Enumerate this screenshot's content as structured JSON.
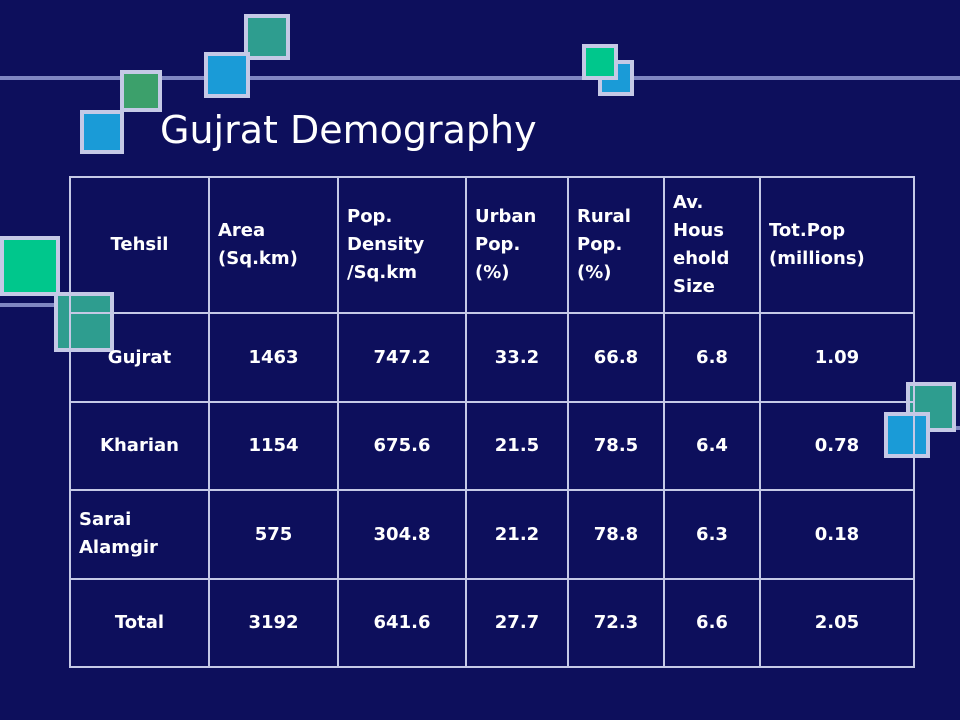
{
  "slide": {
    "title": "Gujrat Demography",
    "accent_colors": [
      "#00c78c",
      "#1a9bd7",
      "#2e9d8f",
      "#3ca06b"
    ]
  },
  "table": {
    "headers": [
      [
        "Tehsil"
      ],
      [
        "Area",
        "(Sq.km)"
      ],
      [
        "Pop.",
        "Density",
        "/Sq.km"
      ],
      [
        "Urban",
        "Pop.",
        "(%)"
      ],
      [
        "Rural",
        "Pop.",
        "(%)"
      ],
      [
        "Av.",
        "Hous",
        "ehold",
        "Size"
      ],
      [
        "Tot.Pop",
        "(millions)"
      ]
    ],
    "rows": [
      {
        "tehsil": [
          "Gujrat"
        ],
        "area": "1463",
        "density": "747.2",
        "urban": "33.2",
        "rural": "66.8",
        "household": "6.8",
        "total_pop": "1.09"
      },
      {
        "tehsil": [
          "Kharian"
        ],
        "area": "1154",
        "density": "675.6",
        "urban": "21.5",
        "rural": "78.5",
        "household": "6.4",
        "total_pop": "0.78"
      },
      {
        "tehsil": [
          "Sarai",
          "Alamgir"
        ],
        "area": "575",
        "density": "304.8",
        "urban": "21.2",
        "rural": "78.8",
        "household": "6.3",
        "total_pop": "0.18"
      },
      {
        "tehsil": [
          "Total"
        ],
        "area": "3192",
        "density": "641.6",
        "urban": "27.7",
        "rural": "72.3",
        "household": "6.6",
        "total_pop": "2.05"
      }
    ]
  }
}
